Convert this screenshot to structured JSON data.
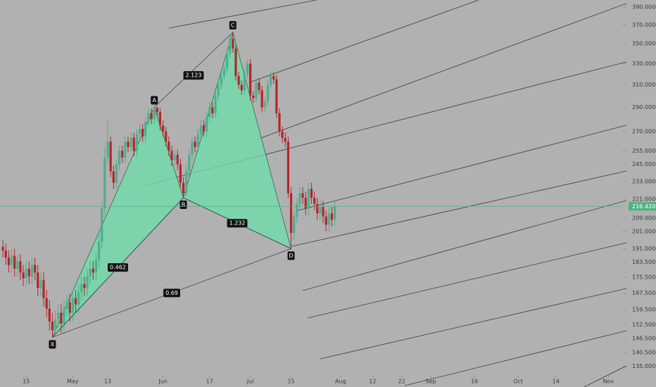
{
  "chart_data": {
    "type": "candlestick",
    "log_scale": true,
    "up_color": "#4fae8c",
    "down_color": "#b3262c",
    "pattern_color": "#6fdcab",
    "last_color": "#4fb37f",
    "ylim": [
      132.3,
      398.2
    ],
    "xlim": [
      "04-06",
      "11-06"
    ],
    "yticks": [
      {
        "value": 390,
        "label": "390.000000"
      },
      {
        "value": 370,
        "label": "370.000000"
      },
      {
        "value": 350,
        "label": "350.000000"
      },
      {
        "value": 330,
        "label": "330.000000"
      },
      {
        "value": 310,
        "label": "310.000000"
      },
      {
        "value": 290,
        "label": "290.000000"
      },
      {
        "value": 270,
        "label": "270.000000"
      },
      {
        "value": 255,
        "label": "255.000000"
      },
      {
        "value": 245,
        "label": "245.000000"
      },
      {
        "value": 233,
        "label": "233.000000"
      },
      {
        "value": 221,
        "label": "221.000000"
      },
      {
        "value": 209,
        "label": "209.000000"
      },
      {
        "value": 201,
        "label": "201.000000"
      },
      {
        "value": 191,
        "label": "191.000000"
      },
      {
        "value": 183.5,
        "label": "183.500000"
      },
      {
        "value": 175.5,
        "label": "175.500000"
      },
      {
        "value": 167.5,
        "label": "167.500000"
      },
      {
        "value": 159.5,
        "label": "159.500000"
      },
      {
        "value": 152.5,
        "label": "152.500000"
      },
      {
        "value": 146.5,
        "label": "146.500000"
      },
      {
        "value": 140.5,
        "label": "140.500000"
      },
      {
        "value": 135,
        "label": "135.000000"
      }
    ],
    "xticks": [
      {
        "value": "04-15",
        "label": "15"
      },
      {
        "value": "05-01",
        "label": "May"
      },
      {
        "value": "05-13",
        "label": "13"
      },
      {
        "value": "06-01",
        "label": "Jun"
      },
      {
        "value": "06-17",
        "label": "17"
      },
      {
        "value": "07-01",
        "label": "Jul"
      },
      {
        "value": "07-15",
        "label": "15"
      },
      {
        "value": "08-01",
        "label": "Aug"
      },
      {
        "value": "08-12",
        "label": "12"
      },
      {
        "value": "08-22",
        "label": "22"
      },
      {
        "value": "09-01",
        "label": "Sep"
      },
      {
        "value": "09-16",
        "label": "16"
      },
      {
        "value": "10-01",
        "label": "Oct"
      },
      {
        "value": "10-14",
        "label": "14"
      },
      {
        "value": "11-01",
        "label": "Nov"
      }
    ],
    "last_price": {
      "value": 216.42,
      "label": "216.420000"
    },
    "x": [
      "04-07",
      "04-08",
      "04-09",
      "04-10",
      "04-11",
      "04-12",
      "04-13",
      "04-14",
      "04-15",
      "04-16",
      "04-17",
      "04-18",
      "04-19",
      "04-20",
      "04-21",
      "04-22",
      "04-23",
      "04-24",
      "04-25",
      "04-26",
      "04-27",
      "04-28",
      "04-29",
      "04-30",
      "05-01",
      "05-02",
      "05-03",
      "05-04",
      "05-05",
      "05-06",
      "05-07",
      "05-08",
      "05-09",
      "05-10",
      "05-11",
      "05-12",
      "05-13",
      "05-14",
      "05-15",
      "05-16",
      "05-17",
      "05-18",
      "05-19",
      "05-20",
      "05-21",
      "05-22",
      "05-23",
      "05-24",
      "05-25",
      "05-26",
      "05-27",
      "05-28",
      "05-29",
      "05-30",
      "05-31",
      "06-01",
      "06-02",
      "06-03",
      "06-04",
      "06-05",
      "06-06",
      "06-07",
      "06-08",
      "06-09",
      "06-10",
      "06-11",
      "06-12",
      "06-13",
      "06-14",
      "06-15",
      "06-16",
      "06-17",
      "06-18",
      "06-19",
      "06-20",
      "06-21",
      "06-22",
      "06-23",
      "06-24",
      "06-25",
      "06-26",
      "06-27",
      "06-28",
      "06-29",
      "06-30",
      "07-01",
      "07-02",
      "07-03",
      "07-04",
      "07-05",
      "07-06",
      "07-07",
      "07-08",
      "07-09",
      "07-10",
      "07-11",
      "07-12",
      "07-13",
      "07-14",
      "07-15",
      "07-16",
      "07-17",
      "07-18",
      "07-19",
      "07-20",
      "07-21",
      "07-22",
      "07-23",
      "07-24",
      "07-25",
      "07-26",
      "07-27",
      "07-28",
      "07-29",
      "07-30"
    ],
    "open": [
      192,
      190,
      186,
      182,
      187,
      180,
      184,
      178,
      175,
      180,
      176,
      182,
      178,
      170,
      174,
      165,
      160,
      154,
      150,
      155,
      158,
      153,
      160,
      163,
      158,
      165,
      162,
      168,
      172,
      170,
      176,
      180,
      178,
      185,
      195,
      215,
      250,
      262,
      240,
      232,
      245,
      255,
      250,
      262,
      258,
      265,
      255,
      268,
      272,
      266,
      278,
      285,
      280,
      290,
      286,
      275,
      270,
      262,
      255,
      248,
      252,
      245,
      232,
      225,
      240,
      252,
      262,
      258,
      268,
      275,
      270,
      282,
      290,
      285,
      300,
      310,
      318,
      325,
      340,
      355,
      345,
      318,
      310,
      305,
      320,
      330,
      300,
      298,
      312,
      305,
      290,
      295,
      310,
      318,
      315,
      285,
      270,
      265,
      262,
      225,
      200,
      210,
      218,
      225,
      222,
      215,
      228,
      222,
      218,
      212,
      216,
      210,
      205,
      212,
      208
    ],
    "high": [
      196,
      194,
      190,
      191,
      191,
      188,
      188,
      182,
      184,
      184,
      186,
      186,
      182,
      178,
      178,
      169,
      164,
      158,
      159,
      162,
      162,
      164,
      167,
      167,
      169,
      169,
      172,
      176,
      176,
      180,
      184,
      184,
      189,
      199,
      219,
      258,
      280,
      266,
      244,
      249,
      259,
      259,
      266,
      266,
      269,
      269,
      272,
      276,
      276,
      282,
      289,
      289,
      290,
      289,
      289,
      279,
      274,
      266,
      259,
      256,
      256,
      249,
      236,
      244,
      256,
      266,
      266,
      272,
      279,
      279,
      286,
      294,
      294,
      304,
      314,
      322,
      329,
      344,
      359,
      362,
      349,
      322,
      314,
      324,
      334,
      334,
      304,
      316,
      316,
      309,
      299,
      314,
      322,
      322,
      319,
      289,
      274,
      269,
      266,
      229,
      214,
      222,
      229,
      229,
      226,
      232,
      232,
      226,
      222,
      220,
      220,
      214,
      216,
      216,
      220
    ],
    "low": [
      186,
      182,
      178,
      178,
      176,
      176,
      174,
      171,
      171,
      172,
      172,
      174,
      166,
      166,
      161,
      156,
      150,
      147,
      148,
      151,
      149,
      149,
      156,
      154,
      154,
      158,
      158,
      164,
      166,
      166,
      172,
      174,
      174,
      181,
      191,
      211,
      246,
      236,
      228,
      228,
      241,
      246,
      246,
      254,
      254,
      251,
      251,
      264,
      262,
      262,
      274,
      276,
      276,
      282,
      271,
      266,
      258,
      251,
      244,
      244,
      241,
      229,
      222,
      223,
      236,
      248,
      254,
      254,
      264,
      266,
      266,
      278,
      281,
      281,
      296,
      306,
      314,
      321,
      336,
      341,
      314,
      306,
      301,
      301,
      316,
      296,
      294,
      294,
      301,
      286,
      286,
      291,
      306,
      311,
      281,
      266,
      261,
      258,
      222,
      191,
      196,
      206,
      214,
      218,
      211,
      211,
      218,
      214,
      208,
      208,
      206,
      201,
      201,
      204,
      204
    ],
    "close": [
      190,
      186,
      182,
      187,
      180,
      184,
      178,
      175,
      180,
      176,
      182,
      178,
      170,
      174,
      165,
      160,
      154,
      150,
      155,
      158,
      153,
      160,
      163,
      158,
      165,
      162,
      168,
      172,
      170,
      176,
      180,
      178,
      185,
      195,
      215,
      250,
      262,
      240,
      232,
      245,
      255,
      250,
      262,
      258,
      265,
      255,
      268,
      272,
      266,
      278,
      285,
      280,
      290,
      286,
      275,
      270,
      262,
      255,
      248,
      252,
      245,
      232,
      225,
      240,
      252,
      262,
      258,
      268,
      275,
      270,
      282,
      290,
      285,
      300,
      310,
      318,
      325,
      340,
      355,
      345,
      318,
      310,
      305,
      320,
      330,
      300,
      298,
      312,
      305,
      290,
      295,
      310,
      318,
      315,
      285,
      270,
      265,
      262,
      225,
      200,
      210,
      218,
      225,
      222,
      215,
      228,
      222,
      218,
      212,
      216,
      210,
      205,
      212,
      208,
      216.42
    ],
    "pattern": {
      "points": [
        {
          "label": "X",
          "x": "04-24",
          "y": 147
        },
        {
          "label": "A",
          "x": "05-29",
          "y": 290
        },
        {
          "label": "B",
          "x": "06-08",
          "y": 222
        },
        {
          "label": "C",
          "x": "06-25",
          "y": 362
        },
        {
          "label": "D",
          "x": "07-15",
          "y": 191
        }
      ],
      "ratios": [
        0.462,
        2.123,
        1.232,
        0.69
      ]
    }
  }
}
